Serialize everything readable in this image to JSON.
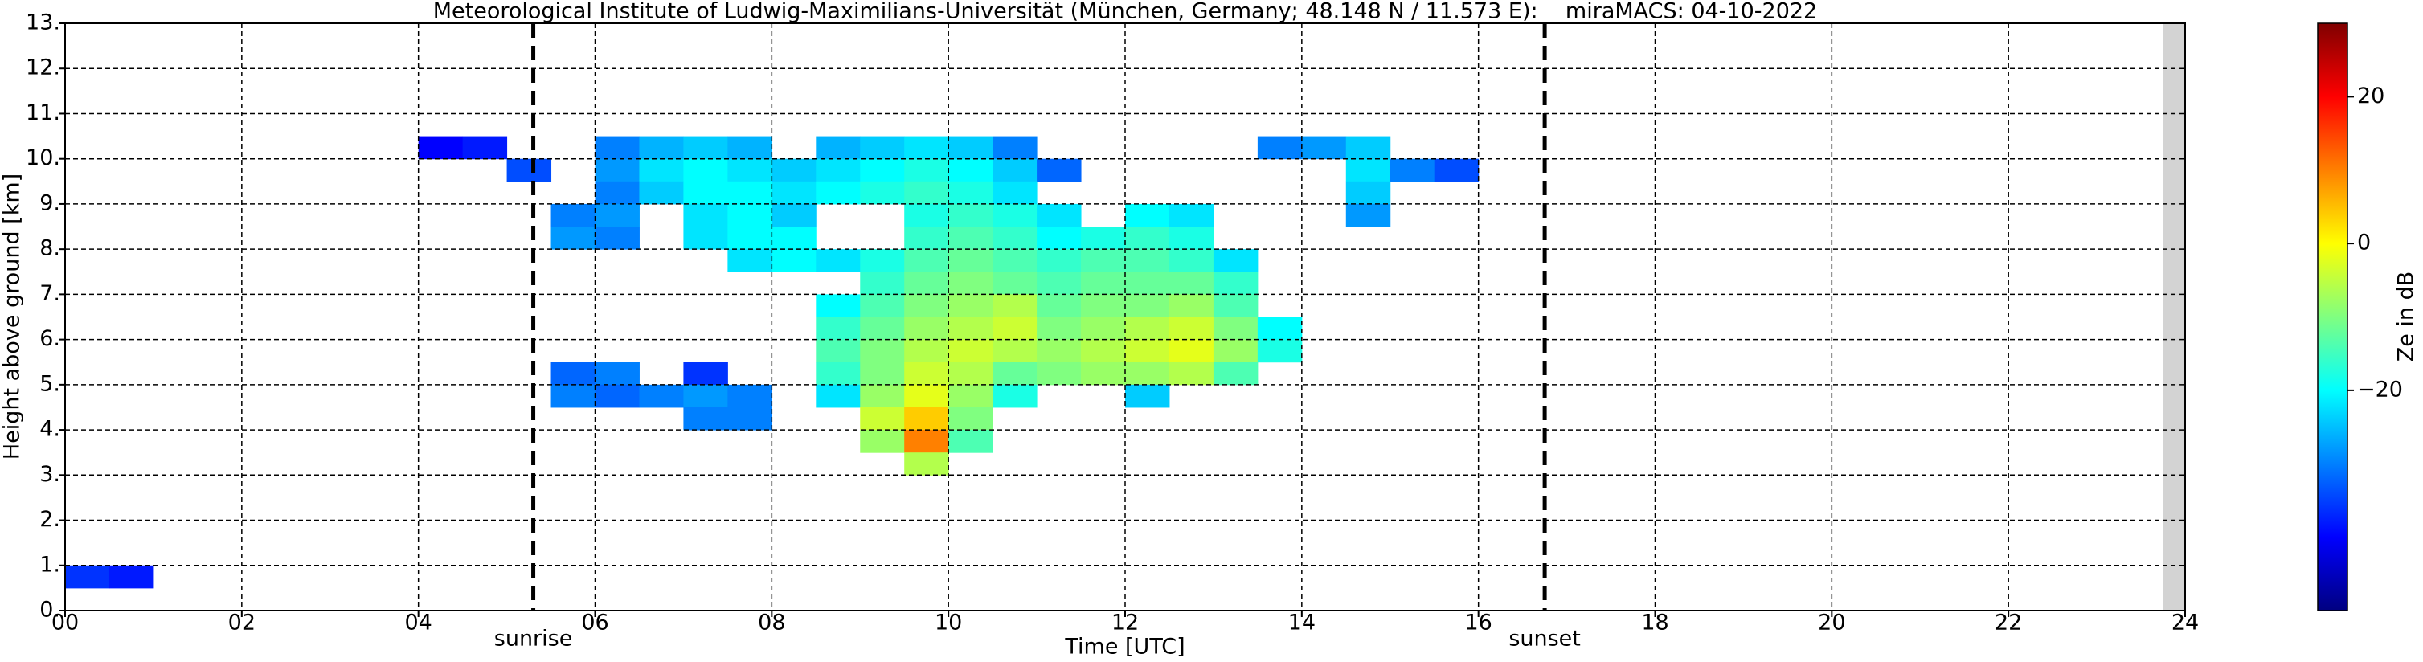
{
  "chart_data": {
    "type": "heatmap",
    "title": "Meteorological Institute of Ludwig-Maximilians-Universität (München, Germany; 48.148 N / 11.573 E):    miraMACS: 04-10-2022",
    "x_label": "Time [UTC]",
    "y_label": "Height above ground [km]",
    "colorbar_label": "Ze in dB",
    "xlim": [
      0,
      24
    ],
    "ylim": [
      0,
      13
    ],
    "xticks": [
      {
        "value": 0,
        "label": "00"
      },
      {
        "value": 2,
        "label": "02"
      },
      {
        "value": 4,
        "label": "04"
      },
      {
        "value": 6,
        "label": "06"
      },
      {
        "value": 8,
        "label": "08"
      },
      10,
      12,
      14,
      16,
      18,
      20,
      22,
      24
    ],
    "yticks": [
      {
        "value": 0,
        "label": "0."
      },
      {
        "value": 1,
        "label": "1."
      },
      {
        "value": 2,
        "label": "2."
      },
      {
        "value": 3,
        "label": "3."
      },
      {
        "value": 4,
        "label": "4."
      },
      {
        "value": 5,
        "label": "5."
      },
      {
        "value": 6,
        "label": "6."
      },
      {
        "value": 7,
        "label": "7."
      },
      {
        "value": 8,
        "label": "8."
      },
      {
        "value": 9,
        "label": "9."
      },
      {
        "value": 10,
        "label": "10."
      },
      {
        "value": 11,
        "label": "11."
      },
      {
        "value": 12,
        "label": "12."
      },
      {
        "value": 13,
        "label": "13."
      }
    ],
    "clim": [
      -50,
      30
    ],
    "cticks": [
      {
        "value": -20,
        "label": "−20"
      },
      0,
      20
    ],
    "grid": true,
    "annotations": [
      {
        "x": 5.3,
        "label": "sunrise"
      },
      {
        "x": 16.75,
        "label": "sunset"
      }
    ],
    "x": [
      4.0,
      4.5,
      6.0,
      6.5,
      7.0,
      7.5,
      8.5,
      9.0,
      9.5,
      10.0,
      10.5,
      13.5,
      14.0,
      14.5,
      5.0,
      6.0,
      6.5,
      7.0,
      7.5,
      8.0,
      8.5,
      9.0,
      9.5,
      10.0,
      10.5,
      11.0,
      14.5,
      15.0,
      15.5,
      6.0,
      6.5,
      7.0,
      7.5,
      8.0,
      8.5,
      9.0,
      9.5,
      10.0,
      10.5,
      14.5,
      5.5,
      6.0,
      7.0,
      7.5,
      8.0,
      9.5,
      10.0,
      10.5,
      11.0,
      12.0,
      12.5,
      14.5,
      5.5,
      6.0,
      7.0,
      7.5,
      8.0,
      9.5,
      10.0,
      10.5,
      11.0,
      11.5,
      12.0,
      12.5,
      7.5,
      8.0,
      8.5,
      9.0,
      9.5,
      10.0,
      10.5,
      11.0,
      11.5,
      12.0,
      12.5,
      13.0,
      9.0,
      9.5,
      10.0,
      10.5,
      11.0,
      11.5,
      12.0,
      12.5,
      13.0,
      8.5,
      9.0,
      9.5,
      10.0,
      10.5,
      11.0,
      11.5,
      12.0,
      12.5,
      13.0,
      8.5,
      9.0,
      9.5,
      10.0,
      10.5,
      11.0,
      11.5,
      12.0,
      12.5,
      13.0,
      13.5,
      8.5,
      9.0,
      9.5,
      10.0,
      10.5,
      11.0,
      11.5,
      12.0,
      12.5,
      13.0,
      13.5,
      5.5,
      6.0,
      7.0,
      8.5,
      9.0,
      9.5,
      10.0,
      10.5,
      11.0,
      11.5,
      12.0,
      12.5,
      13.0,
      5.5,
      6.0,
      6.5,
      7.0,
      7.5,
      8.5,
      9.0,
      9.5,
      10.0,
      10.5,
      12.0,
      7.0,
      7.5,
      9.0,
      9.5,
      10.0,
      9.0,
      9.5,
      10.0,
      9.5,
      0.0,
      0.5
    ],
    "y": [
      10,
      10,
      10,
      10,
      10,
      10,
      10,
      10,
      10,
      10,
      10,
      10,
      10,
      10,
      9.5,
      9.5,
      9.5,
      9.5,
      9.5,
      9.5,
      9.5,
      9.5,
      9.5,
      9.5,
      9.5,
      9.5,
      9.5,
      9.5,
      9.5,
      9,
      9,
      9,
      9,
      9,
      9,
      9,
      9,
      9,
      9,
      9,
      8.5,
      8.5,
      8.5,
      8.5,
      8.5,
      8.5,
      8.5,
      8.5,
      8.5,
      8.5,
      8.5,
      8.5,
      8,
      8,
      8,
      8,
      8,
      8,
      8,
      8,
      8,
      8,
      8,
      8,
      7.5,
      7.5,
      7.5,
      7.5,
      7.5,
      7.5,
      7.5,
      7.5,
      7.5,
      7.5,
      7.5,
      7.5,
      7,
      7,
      7,
      7,
      7,
      7,
      7,
      7,
      7,
      6.5,
      6.5,
      6.5,
      6.5,
      6.5,
      6.5,
      6.5,
      6.5,
      6.5,
      6.5,
      6,
      6,
      6,
      6,
      6,
      6,
      6,
      6,
      6,
      6,
      6,
      5.5,
      5.5,
      5.5,
      5.5,
      5.5,
      5.5,
      5.5,
      5.5,
      5.5,
      5.5,
      5.5,
      5,
      5,
      5,
      5,
      5,
      5,
      5,
      5,
      5,
      5,
      5,
      5,
      5,
      4.5,
      4.5,
      4.5,
      4.5,
      4.5,
      4.5,
      4.5,
      4.5,
      4.5,
      4.5,
      4.5,
      4,
      4,
      4,
      4,
      4,
      3.5,
      3.5,
      3.5,
      3,
      0.5,
      0.5
    ],
    "values": [
      -40,
      -38,
      -30,
      -26,
      -24,
      -26,
      -26,
      -24,
      -22,
      -24,
      -30,
      -30,
      -28,
      -24,
      -34,
      -28,
      -22,
      -20,
      -22,
      -24,
      -22,
      -20,
      -18,
      -20,
      -24,
      -32,
      -22,
      -30,
      -34,
      -30,
      -24,
      -20,
      -20,
      -22,
      -20,
      -18,
      -16,
      -18,
      -22,
      -24,
      -30,
      -28,
      -22,
      -20,
      -24,
      -18,
      -16,
      -18,
      -22,
      -20,
      -22,
      -28,
      -28,
      -30,
      -22,
      -20,
      -20,
      -16,
      -14,
      -16,
      -20,
      -18,
      -16,
      -18,
      -22,
      -20,
      -22,
      -18,
      -14,
      -12,
      -14,
      -16,
      -14,
      -14,
      -16,
      -22,
      -16,
      -12,
      -10,
      -12,
      -14,
      -12,
      -12,
      -12,
      -16,
      -20,
      -14,
      -10,
      -8,
      -6,
      -12,
      -10,
      -10,
      -8,
      -14,
      -16,
      -12,
      -8,
      -6,
      -4,
      -10,
      -8,
      -6,
      -4,
      -10,
      -20,
      -14,
      -10,
      -6,
      -4,
      -6,
      -8,
      -6,
      -4,
      -2,
      -8,
      -18,
      -32,
      -30,
      -36,
      -16,
      -10,
      -4,
      -6,
      -12,
      -10,
      -8,
      -8,
      -6,
      -14,
      -30,
      -32,
      -30,
      -28,
      -30,
      -22,
      -8,
      -2,
      -8,
      -18,
      -24,
      -30,
      -30,
      -4,
      4,
      -10,
      -8,
      10,
      -14,
      -6,
      -36,
      -38
    ]
  }
}
